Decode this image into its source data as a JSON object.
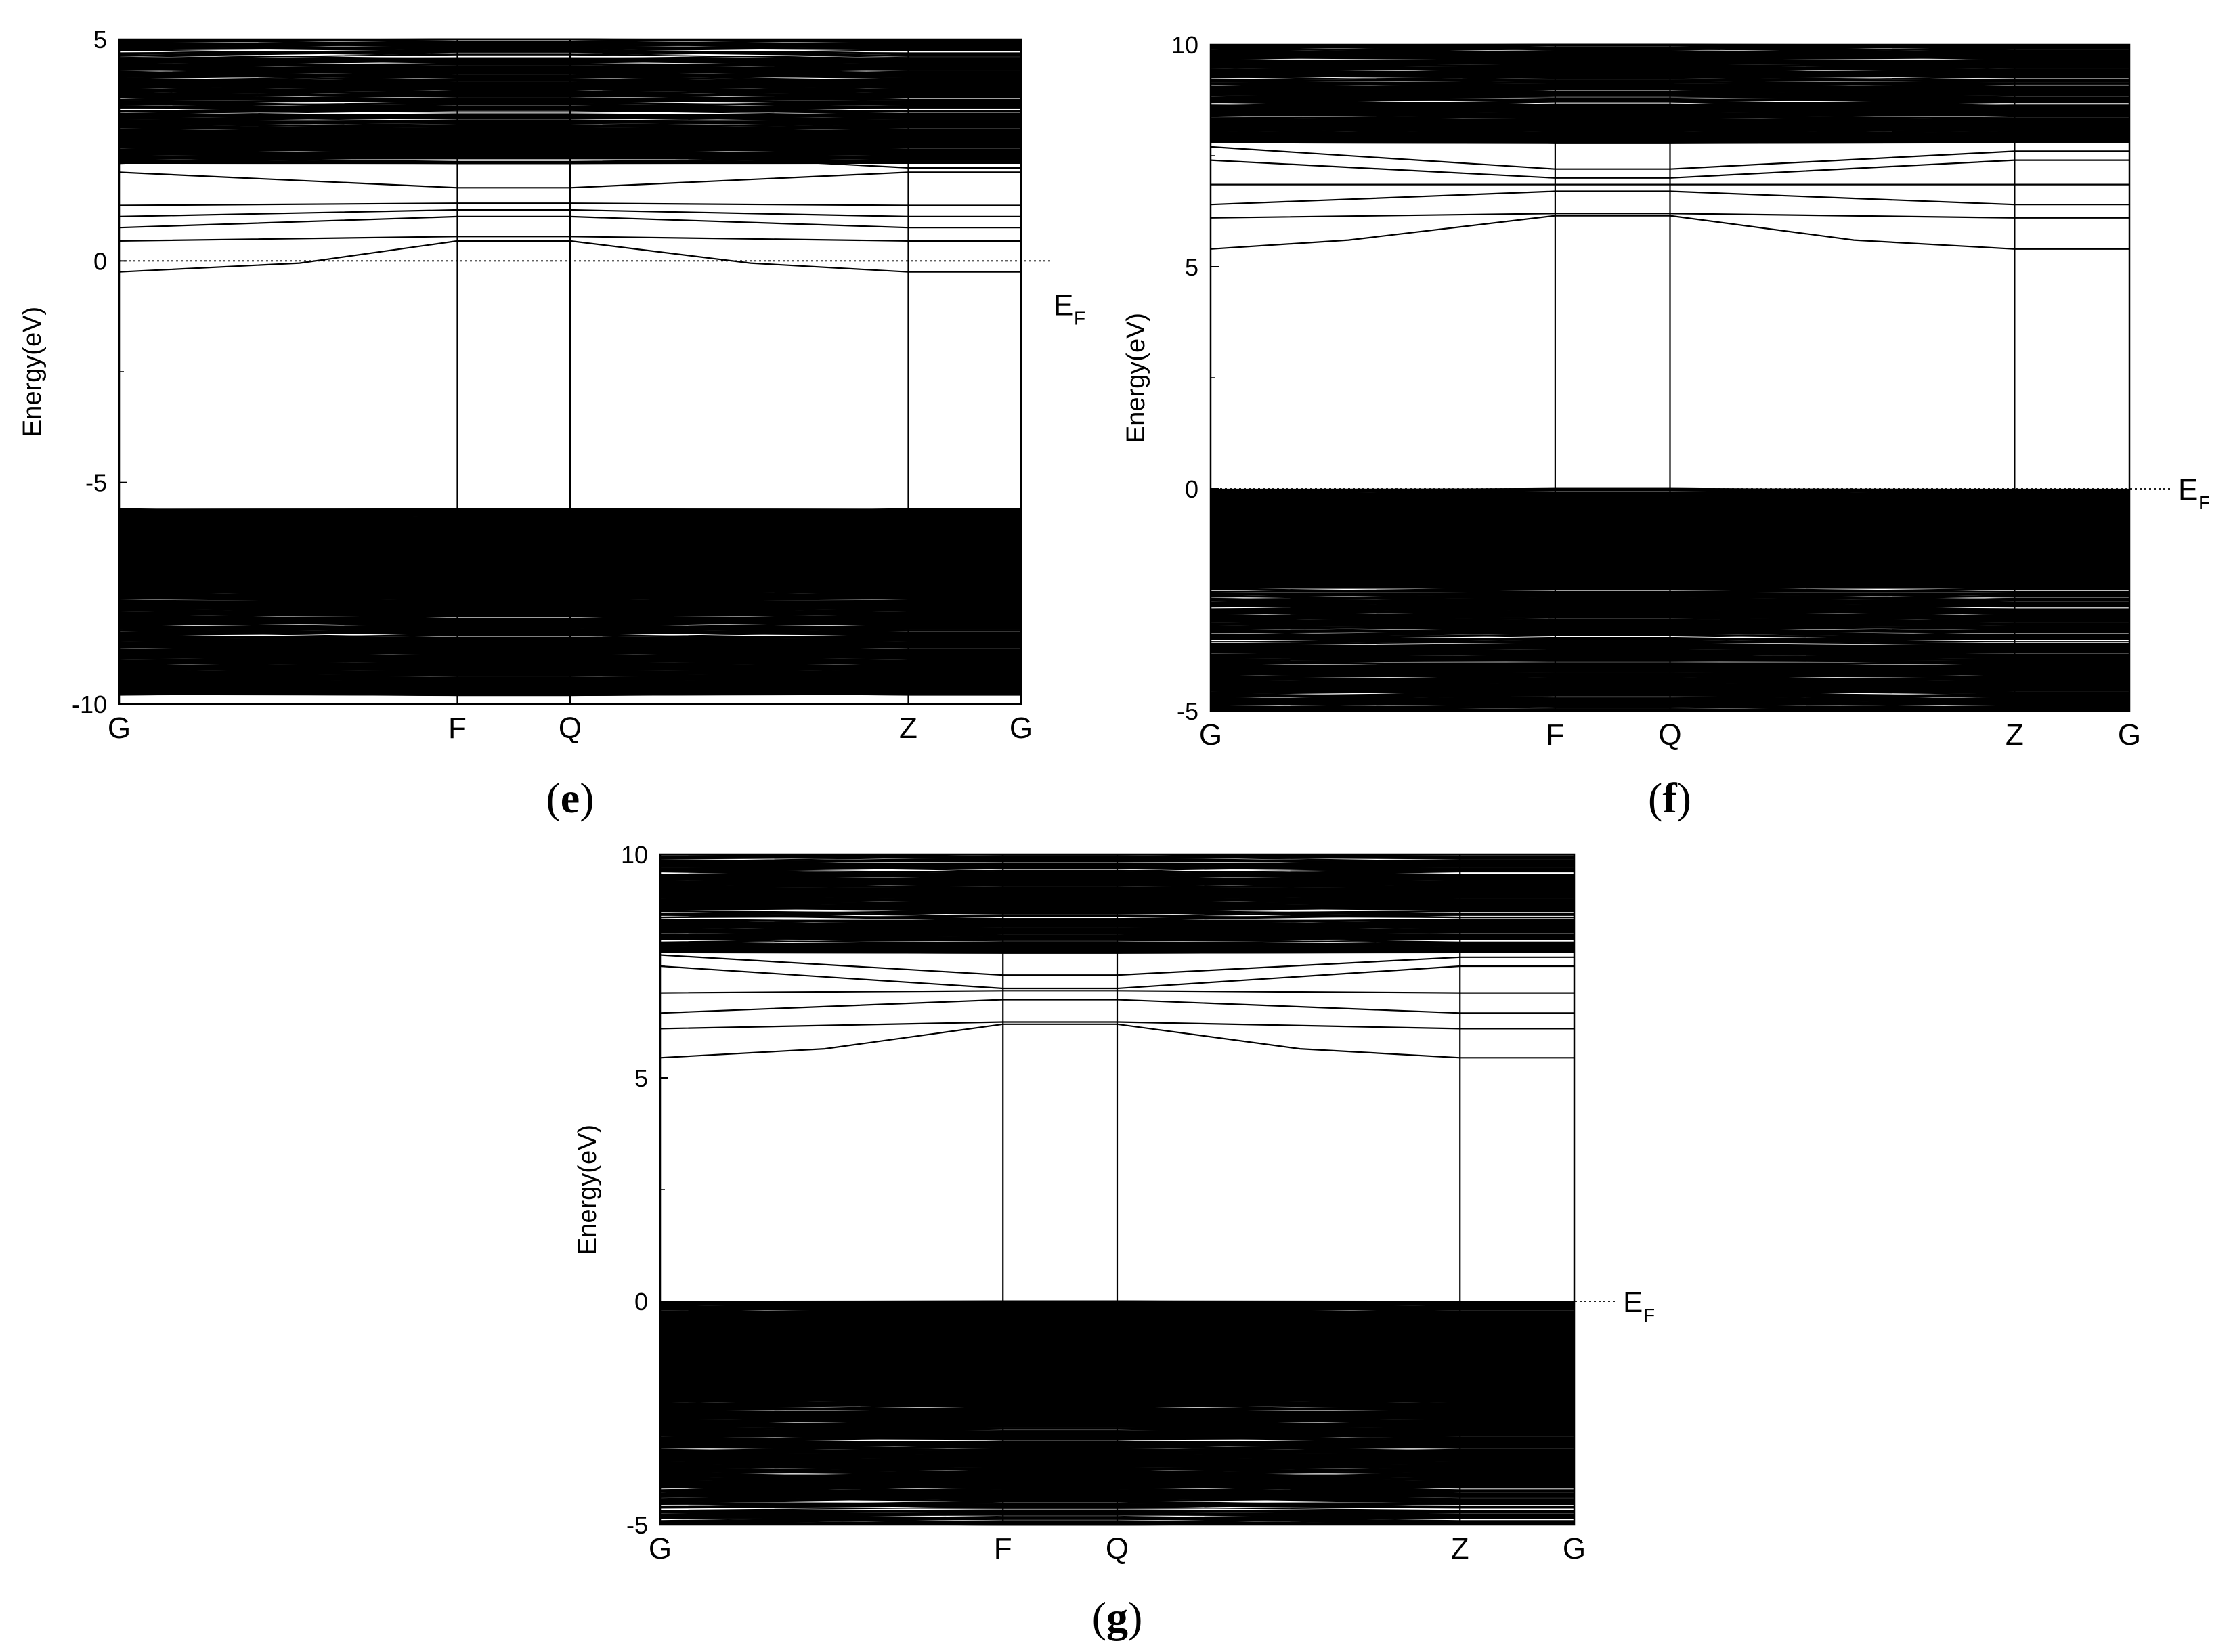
{
  "chart_data": [
    {
      "panel": "e",
      "type": "line",
      "ylabel": "Energy(eV)",
      "ylim": [
        -10,
        5
      ],
      "yticks": [
        "5",
        "0",
        "-5",
        "-10"
      ],
      "ytick_values": [
        5,
        0,
        -5,
        -10
      ],
      "high_symmetry_points": [
        "G",
        "F",
        "Q",
        "Z",
        "G"
      ],
      "high_symmetry_positions": [
        0.0,
        0.375,
        0.5,
        0.875,
        1.0
      ],
      "fermi_level": 0,
      "fermi_label": "E",
      "fermi_subscript": "F",
      "valence_region": [
        -9.8,
        -5.6
      ],
      "conduction_region": [
        2.2,
        5
      ],
      "band_edge_valence_curve": {
        "x": [
          0.0,
          0.375,
          0.5,
          0.875,
          1.0
        ],
        "y": [
          -5.6,
          -5.75,
          -5.75,
          -5.6,
          -5.6
        ]
      },
      "highlighted_bands": [
        {
          "x": [
            0.0,
            0.2,
            0.375,
            0.5,
            0.7,
            0.875,
            1.0
          ],
          "y": [
            -0.25,
            -0.05,
            0.45,
            0.45,
            -0.05,
            -0.25,
            -0.25
          ]
        },
        {
          "x": [
            0.0,
            0.375,
            0.5,
            0.875,
            1.0
          ],
          "y": [
            0.45,
            0.55,
            0.55,
            0.45,
            0.45
          ]
        },
        {
          "x": [
            0.0,
            0.375,
            0.5,
            0.875,
            1.0
          ],
          "y": [
            0.75,
            1.0,
            1.0,
            0.75,
            0.75
          ]
        },
        {
          "x": [
            0.0,
            0.375,
            0.5,
            0.875,
            1.0
          ],
          "y": [
            1.0,
            1.15,
            1.15,
            1.0,
            1.0
          ]
        },
        {
          "x": [
            0.0,
            0.375,
            0.5,
            0.875,
            1.0
          ],
          "y": [
            1.25,
            1.3,
            1.3,
            1.25,
            1.25
          ]
        },
        {
          "x": [
            0.0,
            0.375,
            0.5,
            0.875,
            1.0
          ],
          "y": [
            2.0,
            1.65,
            1.65,
            2.0,
            2.0
          ]
        },
        {
          "x": [
            0.0,
            0.375,
            0.5,
            0.875,
            1.0
          ],
          "y": [
            2.2,
            2.5,
            2.5,
            2.1,
            2.1
          ]
        }
      ],
      "panel_label": "e"
    },
    {
      "panel": "f",
      "type": "line",
      "ylabel": "Energy(eV)",
      "ylim": [
        -5,
        10
      ],
      "yticks": [
        "10",
        "5",
        "0",
        "-5"
      ],
      "ytick_values": [
        10,
        5,
        0,
        -5
      ],
      "high_symmetry_points": [
        "G",
        "F",
        "Q",
        "Z",
        "G"
      ],
      "high_symmetry_positions": [
        0.0,
        0.375,
        0.5,
        0.875,
        1.0
      ],
      "fermi_level": 0,
      "fermi_label": "E",
      "fermi_subscript": "F",
      "valence_region": [
        -5,
        0
      ],
      "conduction_region": [
        7.8,
        10
      ],
      "highlighted_bands": [
        {
          "x": [
            0.0,
            0.15,
            0.375,
            0.5,
            0.7,
            0.875,
            1.0
          ],
          "y": [
            5.4,
            5.6,
            6.15,
            6.15,
            5.6,
            5.4,
            5.4
          ]
        },
        {
          "x": [
            0.0,
            0.375,
            0.5,
            0.875,
            1.0
          ],
          "y": [
            6.1,
            6.2,
            6.2,
            6.1,
            6.1
          ]
        },
        {
          "x": [
            0.0,
            0.375,
            0.5,
            0.875,
            1.0
          ],
          "y": [
            6.4,
            6.7,
            6.7,
            6.4,
            6.4
          ]
        },
        {
          "x": [
            0.0,
            0.375,
            0.5,
            0.875,
            1.0
          ],
          "y": [
            6.85,
            6.85,
            6.85,
            6.85,
            6.85
          ]
        },
        {
          "x": [
            0.0,
            0.375,
            0.5,
            0.875,
            1.0
          ],
          "y": [
            7.4,
            7.0,
            7.0,
            7.4,
            7.4
          ]
        },
        {
          "x": [
            0.0,
            0.375,
            0.5,
            0.875,
            1.0
          ],
          "y": [
            7.7,
            7.2,
            7.2,
            7.6,
            7.6
          ]
        }
      ],
      "panel_label": "f"
    },
    {
      "panel": "g",
      "type": "line",
      "ylabel": "Energy(eV)",
      "ylim": [
        -5,
        10
      ],
      "yticks": [
        "10",
        "5",
        "0",
        "-5"
      ],
      "ytick_values": [
        10,
        5,
        0,
        -5
      ],
      "high_symmetry_points": [
        "G",
        "F",
        "Q",
        "Z",
        "G"
      ],
      "high_symmetry_positions": [
        0.0,
        0.375,
        0.5,
        0.875,
        1.0
      ],
      "fermi_level": 0,
      "fermi_label": "E",
      "fermi_subscript": "F",
      "valence_region": [
        -5,
        0
      ],
      "conduction_region": [
        7.8,
        10
      ],
      "highlighted_bands": [
        {
          "x": [
            0.0,
            0.18,
            0.375,
            0.5,
            0.7,
            0.875,
            1.0
          ],
          "y": [
            5.45,
            5.65,
            6.2,
            6.2,
            5.65,
            5.45,
            5.45
          ]
        },
        {
          "x": [
            0.0,
            0.375,
            0.5,
            0.875,
            1.0
          ],
          "y": [
            6.1,
            6.25,
            6.25,
            6.1,
            6.1
          ]
        },
        {
          "x": [
            0.0,
            0.375,
            0.5,
            0.875,
            1.0
          ],
          "y": [
            6.45,
            6.75,
            6.75,
            6.45,
            6.45
          ]
        },
        {
          "x": [
            0.0,
            0.375,
            0.5,
            0.875,
            1.0
          ],
          "y": [
            6.9,
            6.95,
            6.95,
            6.9,
            6.9
          ]
        },
        {
          "x": [
            0.0,
            0.375,
            0.5,
            0.875,
            1.0
          ],
          "y": [
            7.5,
            7.0,
            7.0,
            7.5,
            7.5
          ]
        },
        {
          "x": [
            0.0,
            0.375,
            0.5,
            0.875,
            1.0
          ],
          "y": [
            7.75,
            7.3,
            7.3,
            7.7,
            7.7
          ]
        }
      ],
      "panel_label": "g"
    }
  ]
}
